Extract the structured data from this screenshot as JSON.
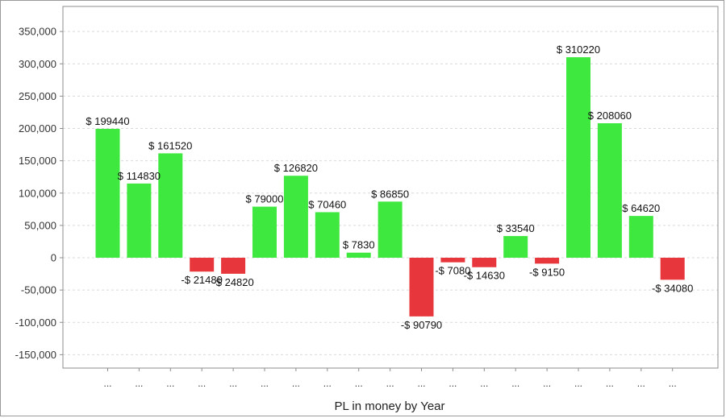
{
  "chart_data": {
    "type": "bar",
    "title": "",
    "xlabel": "PL in money by Year",
    "ylabel": "",
    "ylim": [
      -170000,
      390000
    ],
    "yticks": [
      350000,
      300000,
      250000,
      200000,
      150000,
      100000,
      50000,
      0,
      -50000,
      -100000,
      -150000
    ],
    "ytick_labels": [
      "350,000",
      "300,000",
      "250,000",
      "200,000",
      "150,000",
      "100,000",
      "50,000",
      "0",
      "-50,000",
      "-100,000",
      "-150,000"
    ],
    "grid": true,
    "legend": "none",
    "categories": [
      "...",
      "...",
      "...",
      "...",
      "...",
      "...",
      "...",
      "...",
      "...",
      "...",
      "...",
      "...",
      "...",
      "...",
      "...",
      "...",
      "...",
      "...",
      "..."
    ],
    "values": [
      199440,
      114830,
      161520,
      -21480,
      -24820,
      79000,
      126820,
      70460,
      7830,
      86850,
      -90790,
      -7080,
      -14630,
      33540,
      -9150,
      310220,
      208060,
      64620,
      -34080
    ],
    "data_labels": [
      "$ 199440",
      "$ 114830",
      "$ 161520",
      "-$ 21480",
      "-$ 24820",
      "$ 79000",
      "$ 126820",
      "$ 70460",
      "$ 7830",
      "$ 86850",
      "-$ 90790",
      "-$ 7080",
      "-$ 14630",
      "$ 33540",
      "-$ 9150",
      "$ 310220",
      "$ 208060",
      "$ 64620",
      "-$ 34080"
    ],
    "colors": {
      "positive": "#3fe83f",
      "negative": "#e8373c",
      "grid": "#d9d9d9",
      "axis": "#8c8c8c"
    }
  }
}
